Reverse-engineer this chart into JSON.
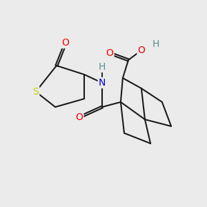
{
  "bg_color": "#ebebeb",
  "atom_colors": {
    "S": "#cccc00",
    "O": "#ff0000",
    "N": "#0000cc",
    "H": "#5a8f90",
    "C": "#1a1a1a"
  },
  "bond_color": "#1a1a1a",
  "bond_width": 1.5,
  "font_size_atoms": 10,
  "title": ""
}
